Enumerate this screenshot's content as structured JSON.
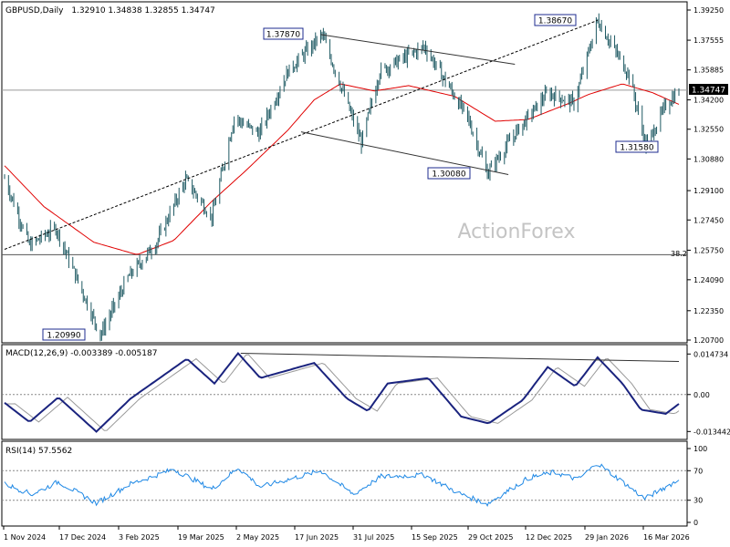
{
  "header": {
    "symbol_tf": "GBPUSD,Daily",
    "ohlc": "1.32910 1.34838 1.32855 1.34747"
  },
  "watermark": "ActionForex",
  "price_axis": {
    "ticks": [
      "1.39250",
      "1.37555",
      "1.35885",
      "1.34200",
      "1.32550",
      "1.30880",
      "1.29100",
      "1.27450",
      "1.25750",
      "1.24090",
      "1.22350",
      "1.20700"
    ],
    "current_label": "1.34747",
    "fib_label": "38.2"
  },
  "annotations": {
    "a1": "1.37870",
    "a2": "1.38670",
    "a3": "1.30080",
    "a4": "1.31580",
    "a5": "1.20990"
  },
  "macd": {
    "label": "MACD(12,26,9) -0.003389 -0.005187",
    "ticks": [
      "0.014734",
      "0.00",
      "-0.013442"
    ]
  },
  "rsi": {
    "label": "RSI(14) 57.5562",
    "ticks": [
      "100",
      "70",
      "30",
      "0"
    ]
  },
  "date_axis": {
    "labels": [
      "1 Nov 2024",
      "17 Dec 2024",
      "3 Feb 2025",
      "19 Mar 2025",
      "2 May 2025",
      "17 Jun 2025",
      "31 Jul 2025",
      "15 Sep 2025",
      "29 Oct 2025",
      "12 Dec 2025",
      "29 Jan 2026",
      "16 Mar 2026"
    ]
  },
  "chart_data": {
    "type": "candlestick",
    "symbol": "GBPUSD",
    "timeframe": "Daily",
    "last_ohlc": {
      "open": 1.3291,
      "high": 1.34838,
      "low": 1.32855,
      "close": 1.34747
    },
    "ylim": [
      1.207,
      1.3925
    ],
    "price_anchors": [
      {
        "date": "2024-11-01",
        "price": 1.298
      },
      {
        "date": "2024-11-20",
        "price": 1.26
      },
      {
        "date": "2024-12-10",
        "price": 1.27
      },
      {
        "date": "2025-01-13",
        "price": 1.2099
      },
      {
        "date": "2025-02-03",
        "price": 1.242
      },
      {
        "date": "2025-02-25",
        "price": 1.262
      },
      {
        "date": "2025-03-19",
        "price": 1.297
      },
      {
        "date": "2025-04-08",
        "price": 1.276
      },
      {
        "date": "2025-04-25",
        "price": 1.332
      },
      {
        "date": "2025-05-14",
        "price": 1.323
      },
      {
        "date": "2025-06-05",
        "price": 1.358
      },
      {
        "date": "2025-07-01",
        "price": 1.3787
      },
      {
        "date": "2025-07-31",
        "price": 1.318
      },
      {
        "date": "2025-08-14",
        "price": 1.358
      },
      {
        "date": "2025-09-17",
        "price": 1.372
      },
      {
        "date": "2025-10-20",
        "price": 1.332
      },
      {
        "date": "2025-11-04",
        "price": 1.3008
      },
      {
        "date": "2025-11-25",
        "price": 1.323
      },
      {
        "date": "2025-12-20",
        "price": 1.346
      },
      {
        "date": "2026-01-09",
        "price": 1.34
      },
      {
        "date": "2026-01-27",
        "price": 1.3867
      },
      {
        "date": "2026-02-20",
        "price": 1.356
      },
      {
        "date": "2026-03-05",
        "price": 1.3158
      },
      {
        "date": "2026-03-20",
        "price": 1.339
      },
      {
        "date": "2026-03-30",
        "price": 1.347
      }
    ],
    "ma_anchors": [
      {
        "date": "2024-11-01",
        "price": 1.305
      },
      {
        "date": "2024-12-01",
        "price": 1.282
      },
      {
        "date": "2025-01-08",
        "price": 1.262
      },
      {
        "date": "2025-02-10",
        "price": 1.255
      },
      {
        "date": "2025-03-10",
        "price": 1.263
      },
      {
        "date": "2025-04-08",
        "price": 1.285
      },
      {
        "date": "2025-05-05",
        "price": 1.303
      },
      {
        "date": "2025-06-05",
        "price": 1.325
      },
      {
        "date": "2025-06-25",
        "price": 1.342
      },
      {
        "date": "2025-07-15",
        "price": 1.351
      },
      {
        "date": "2025-08-10",
        "price": 1.347
      },
      {
        "date": "2025-09-05",
        "price": 1.35
      },
      {
        "date": "2025-10-10",
        "price": 1.344
      },
      {
        "date": "2025-11-10",
        "price": 1.33
      },
      {
        "date": "2025-12-05",
        "price": 1.331
      },
      {
        "date": "2026-01-05",
        "price": 1.34
      },
      {
        "date": "2026-01-20",
        "price": 1.345
      },
      {
        "date": "2026-02-15",
        "price": 1.351
      },
      {
        "date": "2026-03-10",
        "price": 1.346
      },
      {
        "date": "2026-03-30",
        "price": 1.3395
      }
    ],
    "trendlines": [
      {
        "name": "rising",
        "from": {
          "date": "2024-11-01",
          "price": 1.258
        },
        "to": {
          "date": "2026-01-27",
          "price": 1.3867
        },
        "style": "dashed"
      },
      {
        "name": "channel-top",
        "from": {
          "date": "2025-06-30",
          "price": 1.3787
        },
        "to": {
          "date": "2025-11-25",
          "price": 1.362
        },
        "style": "solid"
      },
      {
        "name": "channel-bottom",
        "from": {
          "date": "2025-06-15",
          "price": 1.324
        },
        "to": {
          "date": "2025-11-20",
          "price": 1.3
        },
        "style": "solid"
      }
    ],
    "hlines": [
      {
        "name": "fib-38.2",
        "price": 1.255
      },
      {
        "name": "current",
        "price": 1.34747
      }
    ],
    "macd_params": "12,26,9",
    "macd_values": {
      "macd": -0.003389,
      "signal": -0.005187
    },
    "macd_anchors": [
      {
        "date": "2024-11-01",
        "v": -0.003
      },
      {
        "date": "2024-11-20",
        "v": -0.01
      },
      {
        "date": "2024-12-12",
        "v": -0.001
      },
      {
        "date": "2025-01-10",
        "v": -0.0135
      },
      {
        "date": "2025-02-05",
        "v": -0.0015
      },
      {
        "date": "2025-03-20",
        "v": 0.013
      },
      {
        "date": "2025-04-10",
        "v": 0.004
      },
      {
        "date": "2025-04-28",
        "v": 0.015
      },
      {
        "date": "2025-05-15",
        "v": 0.006
      },
      {
        "date": "2025-06-25",
        "v": 0.0115
      },
      {
        "date": "2025-07-20",
        "v": -0.0015
      },
      {
        "date": "2025-08-05",
        "v": -0.006
      },
      {
        "date": "2025-08-20",
        "v": 0.004
      },
      {
        "date": "2025-09-20",
        "v": 0.006
      },
      {
        "date": "2025-10-15",
        "v": -0.008
      },
      {
        "date": "2025-11-05",
        "v": -0.0105
      },
      {
        "date": "2025-12-01",
        "v": -0.002
      },
      {
        "date": "2025-12-20",
        "v": 0.01
      },
      {
        "date": "2026-01-10",
        "v": 0.003
      },
      {
        "date": "2026-01-27",
        "v": 0.0135
      },
      {
        "date": "2026-02-15",
        "v": 0.004
      },
      {
        "date": "2026-03-01",
        "v": -0.0055
      },
      {
        "date": "2026-03-20",
        "v": -0.007
      },
      {
        "date": "2026-03-30",
        "v": -0.0034
      }
    ],
    "macd_trendline": {
      "from": {
        "date": "2025-04-30",
        "v": 0.015
      },
      "to": {
        "date": "2026-03-30",
        "v": 0.012
      }
    },
    "rsi_period": 14,
    "rsi_value": 57.5562,
    "rsi_levels": [
      70,
      30
    ],
    "rsi_anchors": [
      {
        "date": "2024-11-01",
        "v": 52
      },
      {
        "date": "2024-11-22",
        "v": 38
      },
      {
        "date": "2024-12-12",
        "v": 55
      },
      {
        "date": "2025-01-10",
        "v": 26
      },
      {
        "date": "2025-02-05",
        "v": 52
      },
      {
        "date": "2025-03-10",
        "v": 72
      },
      {
        "date": "2025-04-08",
        "v": 45
      },
      {
        "date": "2025-04-28",
        "v": 74
      },
      {
        "date": "2025-05-15",
        "v": 48
      },
      {
        "date": "2025-06-30",
        "v": 70
      },
      {
        "date": "2025-07-25",
        "v": 38
      },
      {
        "date": "2025-08-15",
        "v": 62
      },
      {
        "date": "2025-09-17",
        "v": 64
      },
      {
        "date": "2025-10-15",
        "v": 38
      },
      {
        "date": "2025-11-04",
        "v": 25
      },
      {
        "date": "2025-12-05",
        "v": 60
      },
      {
        "date": "2025-12-25",
        "v": 68
      },
      {
        "date": "2026-01-12",
        "v": 58
      },
      {
        "date": "2026-01-27",
        "v": 80
      },
      {
        "date": "2026-02-15",
        "v": 55
      },
      {
        "date": "2026-03-04",
        "v": 32
      },
      {
        "date": "2026-03-20",
        "v": 48
      },
      {
        "date": "2026-03-30",
        "v": 57.6
      }
    ]
  }
}
